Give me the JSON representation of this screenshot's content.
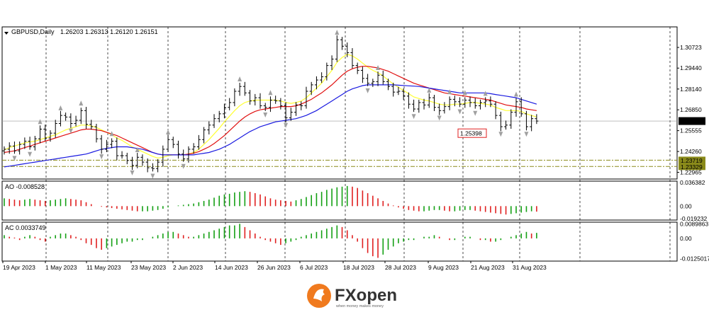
{
  "header": {
    "symbol": "GBPUSD,Daily",
    "ohlc": "1.26203 1.26313 1.26120 1.26151"
  },
  "colors": {
    "bull_bar": "#000000",
    "ma_yellow": "#ffff33",
    "ma_red": "#e01010",
    "ma_blue": "#1a1ae0",
    "ao_up": "#14a014",
    "ao_down": "#e02020",
    "level_line": "#8a8a1a",
    "fractal": "#a0a0a0",
    "brand_orange": "#f07a1e"
  },
  "chart_data": [
    {
      "type": "candlestick",
      "title": "GBPUSD,Daily",
      "y_ticks": [
        "1.30723",
        "1.29440",
        "1.28140",
        "1.26850",
        "1.25555",
        "1.24260",
        "1.22965"
      ],
      "ylim": [
        1.2255,
        1.32
      ],
      "x_ticks": [
        "19 Apr 2023",
        "1 May 2023",
        "11 May 2023",
        "23 May 2023",
        "2 Jun 2023",
        "14 Jun 2023",
        "26 Jun 2023",
        "6 Jul 2023",
        "18 Jul 2023",
        "28 Jul 2023",
        "9 Aug 2023",
        "21 Aug 2023",
        "31 Aug 2023"
      ],
      "current_price": "1.26151",
      "annotation": "1.25398",
      "levels": [
        {
          "label": "1.23719",
          "value": 1.23719
        },
        {
          "label": "1.23329",
          "value": 1.23329
        }
      ],
      "close": [
        1.244,
        1.246,
        1.243,
        1.247,
        1.249,
        1.2455,
        1.2505,
        1.2565,
        1.251,
        1.254,
        1.26,
        1.265,
        1.264,
        1.26,
        1.262,
        1.268,
        1.2595,
        1.258,
        1.2505,
        1.244,
        1.247,
        1.249,
        1.24,
        1.24,
        1.237,
        1.234,
        1.239,
        1.236,
        1.2325,
        1.232,
        1.236,
        1.244,
        1.25,
        1.247,
        1.241,
        1.238,
        1.244,
        1.2455,
        1.25,
        1.256,
        1.259,
        1.263,
        1.266,
        1.27,
        1.273,
        1.28,
        1.283,
        1.279,
        1.274,
        1.276,
        1.271,
        1.27,
        1.2745,
        1.274,
        1.271,
        1.2635,
        1.267,
        1.2715,
        1.271,
        1.28,
        1.284,
        1.287,
        1.289,
        1.296,
        1.3,
        1.312,
        1.308,
        1.304,
        1.296,
        1.293,
        1.288,
        1.285,
        1.286,
        1.29,
        1.286,
        1.283,
        1.2795,
        1.28,
        1.277,
        1.272,
        1.269,
        1.273,
        1.2715,
        1.276,
        1.27,
        1.268,
        1.2705,
        1.275,
        1.2735,
        1.272,
        1.2745,
        1.273,
        1.271,
        1.273,
        1.274,
        1.272,
        1.265,
        1.258,
        1.259,
        1.267,
        1.2735,
        1.266,
        1.258,
        1.263,
        1.2615
      ],
      "series": [
        {
          "name": "",
          "style": "ma_yellow",
          "values": [
            1.2435,
            1.245,
            1.246,
            1.247,
            1.248,
            1.2485,
            1.249,
            1.25,
            1.251,
            1.252,
            1.253,
            1.2545,
            1.256,
            1.257,
            1.258,
            1.259,
            1.259,
            1.2585,
            1.2575,
            1.256,
            1.2545,
            1.253,
            1.251,
            1.2495,
            1.2475,
            1.2455,
            1.244,
            1.2425,
            1.241,
            1.2395,
            1.2385,
            1.239,
            1.24,
            1.2405,
            1.2405,
            1.2405,
            1.241,
            1.242,
            1.244,
            1.247,
            1.25,
            1.2535,
            1.257,
            1.261,
            1.2645,
            1.268,
            1.271,
            1.273,
            1.274,
            1.2745,
            1.2745,
            1.2745,
            1.2745,
            1.2745,
            1.274,
            1.273,
            1.2725,
            1.273,
            1.274,
            1.276,
            1.279,
            1.282,
            1.285,
            1.289,
            1.293,
            1.298,
            1.301,
            1.303,
            1.302,
            1.3,
            1.2975,
            1.295,
            1.293,
            1.2915,
            1.2895,
            1.287,
            1.2845,
            1.2825,
            1.2805,
            1.2785,
            1.2765,
            1.2755,
            1.2745,
            1.274,
            1.273,
            1.272,
            1.2715,
            1.2715,
            1.272,
            1.272,
            1.2725,
            1.273,
            1.273,
            1.2725,
            1.272,
            1.2715,
            1.27,
            1.269,
            1.268,
            1.268,
            1.268,
            1.2675,
            1.266,
            1.265,
            1.264
          ]
        },
        {
          "name": "",
          "style": "ma_red",
          "values": [
            1.242,
            1.2425,
            1.243,
            1.244,
            1.245,
            1.246,
            1.247,
            1.248,
            1.249,
            1.25,
            1.251,
            1.252,
            1.253,
            1.254,
            1.255,
            1.256,
            1.2565,
            1.2565,
            1.256,
            1.2555,
            1.2545,
            1.2535,
            1.2525,
            1.251,
            1.2495,
            1.248,
            1.2465,
            1.245,
            1.2435,
            1.242,
            1.241,
            1.2405,
            1.2405,
            1.2405,
            1.2405,
            1.2405,
            1.241,
            1.2415,
            1.2425,
            1.244,
            1.2455,
            1.2475,
            1.25,
            1.2525,
            1.2555,
            1.2585,
            1.2615,
            1.264,
            1.266,
            1.2675,
            1.2685,
            1.269,
            1.2695,
            1.27,
            1.2705,
            1.2705,
            1.2705,
            1.271,
            1.272,
            1.2735,
            1.275,
            1.277,
            1.279,
            1.2815,
            1.284,
            1.287,
            1.29,
            1.2925,
            1.294,
            1.295,
            1.2955,
            1.2955,
            1.295,
            1.2945,
            1.2935,
            1.2925,
            1.291,
            1.2895,
            1.288,
            1.2865,
            1.285,
            1.284,
            1.283,
            1.282,
            1.281,
            1.28,
            1.279,
            1.2785,
            1.278,
            1.2775,
            1.277,
            1.2765,
            1.276,
            1.2755,
            1.275,
            1.2745,
            1.2735,
            1.2725,
            1.2715,
            1.271,
            1.2705,
            1.27,
            1.269,
            1.2685,
            1.268
          ]
        },
        {
          "name": "",
          "style": "ma_blue",
          "values": [
            1.233,
            1.2335,
            1.234,
            1.2345,
            1.235,
            1.2355,
            1.236,
            1.2365,
            1.237,
            1.2375,
            1.238,
            1.2385,
            1.239,
            1.2395,
            1.24,
            1.2405,
            1.241,
            1.242,
            1.243,
            1.244,
            1.2445,
            1.245,
            1.2455,
            1.2455,
            1.2455,
            1.245,
            1.2445,
            1.244,
            1.243,
            1.242,
            1.241,
            1.2405,
            1.2405,
            1.2405,
            1.2405,
            1.2405,
            1.2405,
            1.2405,
            1.241,
            1.2415,
            1.242,
            1.243,
            1.244,
            1.2455,
            1.247,
            1.249,
            1.251,
            1.253,
            1.255,
            1.2565,
            1.258,
            1.259,
            1.26,
            1.261,
            1.2615,
            1.262,
            1.2625,
            1.263,
            1.264,
            1.265,
            1.2665,
            1.268,
            1.27,
            1.272,
            1.274,
            1.276,
            1.278,
            1.28,
            1.2815,
            1.2825,
            1.2835,
            1.284,
            1.284,
            1.284,
            1.284,
            1.284,
            1.284,
            1.2838,
            1.2836,
            1.2834,
            1.2832,
            1.283,
            1.2825,
            1.282,
            1.2815,
            1.281,
            1.2805,
            1.28,
            1.2795,
            1.279,
            1.279,
            1.279,
            1.279,
            1.279,
            1.279,
            1.2785,
            1.278,
            1.2775,
            1.277,
            1.2765,
            1.276,
            1.275,
            1.274,
            1.273,
            1.272
          ]
        }
      ]
    },
    {
      "type": "bar",
      "title": "AO -0.008528",
      "y_ticks": [
        "0.036382",
        "0.00",
        "-0.019232"
      ],
      "ylim": [
        -0.0215,
        0.0385
      ],
      "values": [
        0.012,
        0.011,
        0.01,
        0.009,
        0.01,
        0.011,
        0.01,
        0.009,
        0.008,
        0.009,
        0.01,
        0.011,
        0.012,
        0.011,
        0.01,
        0.009,
        0.006,
        0.003,
        0.0,
        -0.001,
        -0.002,
        -0.003,
        -0.004,
        -0.005,
        -0.006,
        -0.007,
        -0.008,
        -0.008,
        -0.008,
        -0.007,
        -0.006,
        -0.004,
        -0.002,
        0.0,
        0.001,
        0.002,
        0.003,
        0.004,
        0.006,
        0.008,
        0.01,
        0.013,
        0.016,
        0.018,
        0.019,
        0.021,
        0.022,
        0.023,
        0.022,
        0.02,
        0.018,
        0.015,
        0.012,
        0.01,
        0.009,
        0.008,
        0.007,
        0.009,
        0.011,
        0.014,
        0.017,
        0.02,
        0.022,
        0.025,
        0.027,
        0.029,
        0.03,
        0.031,
        0.03,
        0.028,
        0.024,
        0.02,
        0.016,
        0.012,
        0.008,
        0.004,
        0.001,
        -0.002,
        -0.004,
        -0.006,
        -0.007,
        -0.008,
        -0.008,
        -0.007,
        -0.006,
        -0.006,
        -0.007,
        -0.008,
        -0.008,
        -0.007,
        -0.006,
        -0.006,
        -0.007,
        -0.008,
        -0.009,
        -0.01,
        -0.011,
        -0.012,
        -0.013,
        -0.012,
        -0.011,
        -0.01,
        -0.009,
        -0.008,
        -0.0085
      ]
    },
    {
      "type": "bar",
      "title": "AC 0.0033749",
      "y_ticks": [
        "0.0089863",
        "0.00",
        "-0.0125017"
      ],
      "ylim": [
        -0.014,
        0.01
      ],
      "values": [
        0.002,
        0.001,
        0.0005,
        -0.001,
        0.001,
        0.002,
        0.001,
        -0.001,
        -0.002,
        0.001,
        0.002,
        0.003,
        0.003,
        0.002,
        0.001,
        -0.001,
        -0.003,
        -0.004,
        -0.006,
        -0.007,
        -0.006,
        -0.005,
        -0.004,
        -0.003,
        -0.002,
        -0.002,
        -0.001,
        -0.001,
        0.0,
        0.001,
        0.002,
        0.003,
        0.004,
        0.004,
        0.003,
        0.002,
        0.001,
        0.001,
        0.002,
        0.003,
        0.004,
        0.005,
        0.006,
        0.007,
        0.008,
        0.008,
        0.009,
        0.007,
        0.005,
        0.003,
        0.001,
        -0.001,
        -0.002,
        -0.003,
        -0.004,
        -0.003,
        -0.002,
        -0.001,
        0.001,
        0.002,
        0.003,
        0.004,
        0.005,
        0.006,
        0.007,
        0.008,
        0.007,
        0.005,
        0.002,
        -0.002,
        -0.006,
        -0.009,
        -0.011,
        -0.012,
        -0.01,
        -0.007,
        -0.005,
        -0.003,
        -0.002,
        -0.001,
        -0.001,
        0.0,
        0.001,
        0.001,
        0.002,
        0.001,
        0.0,
        -0.001,
        -0.001,
        0.0,
        0.001,
        0.001,
        0.0,
        -0.001,
        -0.001,
        -0.002,
        -0.002,
        -0.001,
        0.0,
        0.001,
        0.002,
        0.003,
        0.004,
        0.003,
        0.0034
      ]
    }
  ],
  "footer": {
    "brand": "FXopen",
    "tagline": "when money makes money"
  }
}
